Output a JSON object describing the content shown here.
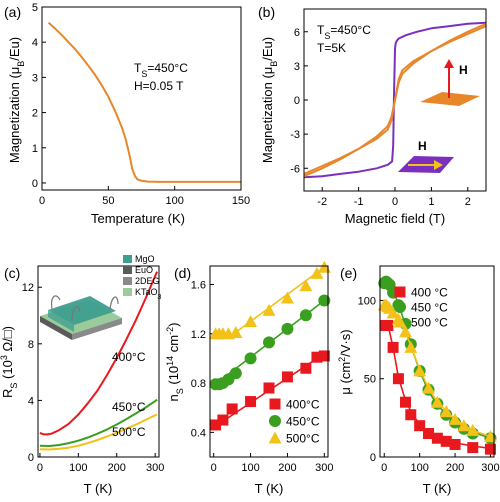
{
  "colors": {
    "orange": "#E8872A",
    "purple": "#7B2FBF",
    "red": "#E8191E",
    "green": "#3A9E1F",
    "yellow": "#F2C21A",
    "mgo": "#3E9E8F",
    "euo": "#5A5A5A",
    "twodeg": "#8A8A8A",
    "ktao3": "#9ACB9A"
  },
  "chart_data": [
    {
      "type": "line",
      "panel_label": "(a)",
      "xlabel": "Temperature (K)",
      "ylabel": "Magnetization (μ",
      "ylabel_sub": "B",
      "ylabel_end": "/Eu)",
      "xlim": [
        0,
        150
      ],
      "ylim": [
        -0.2,
        5
      ],
      "xticks": [
        0,
        50,
        100,
        150
      ],
      "yticks": [
        0,
        1,
        2,
        3,
        4,
        5
      ],
      "annotations": [
        {
          "text": "T",
          "sub": "S",
          "rest": "=450°C"
        },
        {
          "text": "H=0.05 T"
        }
      ],
      "series": [
        {
          "color": "orange",
          "x": [
            5,
            10,
            15,
            20,
            25,
            30,
            35,
            40,
            45,
            50,
            55,
            60,
            63,
            65,
            67,
            68,
            70,
            72,
            75,
            80,
            90,
            100,
            120,
            150
          ],
          "y": [
            4.55,
            4.38,
            4.2,
            4.0,
            3.8,
            3.57,
            3.33,
            3.07,
            2.78,
            2.45,
            2.05,
            1.6,
            1.25,
            0.95,
            0.6,
            0.4,
            0.2,
            0.1,
            0.06,
            0.04,
            0.03,
            0.03,
            0.03,
            0.03
          ]
        }
      ]
    },
    {
      "type": "line",
      "panel_label": "(b)",
      "xlabel": "Magnetic field (T)",
      "ylabel": "Magnetization (μ",
      "ylabel_sub": "B",
      "ylabel_end": "/Eu)",
      "xlim": [
        -2.5,
        2.5
      ],
      "ylim": [
        -8,
        8
      ],
      "xticks": [
        -2,
        -1,
        0,
        1,
        2
      ],
      "yticks": [
        -6,
        -3,
        0,
        3,
        6
      ],
      "annotations": [
        {
          "text": "T",
          "sub": "S",
          "rest": "=450°C"
        },
        {
          "text": "T=5K"
        },
        {
          "text": "H"
        },
        {
          "text": "H"
        }
      ],
      "series": [
        {
          "color": "purple",
          "x": [
            -2.5,
            -2.0,
            -1.5,
            -1.0,
            -0.5,
            -0.2,
            -0.08,
            -0.05,
            -0.03,
            0.0,
            0.02,
            0.05,
            0.1,
            0.3,
            0.6,
            1.0,
            1.5,
            2.0,
            2.5
          ],
          "y": [
            -6.8,
            -6.7,
            -6.5,
            -6.3,
            -6.0,
            -5.7,
            -5.4,
            -4.0,
            0.0,
            4.5,
            5.0,
            5.2,
            5.4,
            5.7,
            6.0,
            6.3,
            6.5,
            6.7,
            6.8
          ]
        },
        {
          "color": "orange",
          "x": [
            -2.5,
            -2.0,
            -1.5,
            -1.0,
            -0.5,
            -0.2,
            -0.1,
            0.0,
            0.1,
            0.2,
            0.5,
            1.0,
            1.5,
            2.0,
            2.5
          ],
          "y": [
            -6.7,
            -6.0,
            -5.2,
            -4.3,
            -3.2,
            -2.3,
            -1.5,
            0.0,
            1.8,
            2.6,
            3.4,
            4.3,
            5.1,
            5.8,
            6.5
          ]
        },
        {
          "color": "orange",
          "x": [
            -2.5,
            -2.0,
            -1.5,
            -1.0,
            -0.5,
            -0.2,
            -0.1,
            0.0,
            0.1,
            0.2,
            0.5,
            1.0,
            1.5,
            2.0,
            2.5
          ],
          "y": [
            -6.5,
            -5.8,
            -5.1,
            -4.3,
            -3.4,
            -2.6,
            -1.8,
            0.0,
            1.5,
            2.3,
            3.2,
            4.3,
            5.2,
            6.0,
            6.7
          ]
        }
      ]
    },
    {
      "type": "line",
      "panel_label": "(c)",
      "xlabel": "T (K)",
      "ylabel": "R",
      "ylabel_sub": "S",
      "ylabel_end": " (10",
      "ylabel_sup": "3",
      "ylabel_tail": " Ω/□)",
      "xlim": [
        -5,
        310
      ],
      "ylim": [
        0,
        13.5
      ],
      "xticks": [
        0,
        100,
        200,
        300
      ],
      "yticks": [
        0,
        4,
        8,
        12
      ],
      "legend_layers": [
        "MgO",
        "EuO",
        "2DEG",
        "KTaO",
        "3"
      ],
      "series": [
        {
          "name": "400°C",
          "color": "red",
          "x": [
            0,
            10,
            20,
            30,
            50,
            75,
            100,
            125,
            150,
            175,
            200,
            225,
            250,
            275,
            300,
            305
          ],
          "y": [
            1.7,
            1.6,
            1.6,
            1.65,
            1.9,
            2.35,
            3.0,
            3.8,
            4.7,
            5.8,
            7.0,
            8.3,
            9.7,
            11.2,
            12.8,
            13.1
          ]
        },
        {
          "name": "450°C",
          "color": "green",
          "x": [
            0,
            25,
            50,
            75,
            100,
            125,
            150,
            175,
            200,
            225,
            250,
            275,
            300,
            305
          ],
          "y": [
            0.8,
            0.78,
            0.85,
            0.98,
            1.15,
            1.38,
            1.65,
            1.95,
            2.3,
            2.68,
            3.08,
            3.5,
            3.95,
            4.05
          ]
        },
        {
          "name": "500°C",
          "color": "yellow",
          "x": [
            0,
            25,
            50,
            75,
            100,
            125,
            150,
            175,
            200,
            225,
            250,
            275,
            300,
            305
          ],
          "y": [
            0.55,
            0.53,
            0.58,
            0.66,
            0.8,
            0.98,
            1.2,
            1.45,
            1.72,
            2.0,
            2.3,
            2.62,
            2.95,
            3.0
          ]
        }
      ]
    },
    {
      "type": "scatter",
      "panel_label": "(d)",
      "xlabel": "T (K)",
      "ylabel": "n",
      "ylabel_sub": "S",
      "ylabel_end": " (10",
      "ylabel_sup": "14",
      "ylabel_tail": " cm",
      "ylabel_sup2": "-2",
      "ylabel_close": ")",
      "xlim": [
        -10,
        310
      ],
      "ylim": [
        0.2,
        1.75
      ],
      "xticks": [
        0,
        100,
        200,
        300
      ],
      "yticks": [
        0.4,
        0.8,
        1.2,
        1.6
      ],
      "series": [
        {
          "name": "400°C",
          "color": "red",
          "marker": "square",
          "x": [
            5,
            25,
            50,
            100,
            150,
            200,
            250,
            280,
            300
          ],
          "y": [
            0.46,
            0.5,
            0.59,
            0.65,
            0.76,
            0.85,
            0.92,
            1.01,
            1.02
          ],
          "fit": [
            [
              0,
              0.44
            ],
            [
              300,
              1.04
            ]
          ]
        },
        {
          "name": "450°C",
          "color": "green",
          "marker": "circle",
          "x": [
            5,
            15,
            25,
            40,
            60,
            100,
            150,
            200,
            250,
            300
          ],
          "y": [
            0.79,
            0.79,
            0.8,
            0.83,
            0.88,
            1.0,
            1.13,
            1.24,
            1.35,
            1.47
          ],
          "fit": [
            [
              0,
              0.78
            ],
            [
              300,
              1.47
            ]
          ]
        },
        {
          "name": "500°C",
          "color": "yellow",
          "marker": "triangle",
          "x": [
            5,
            15,
            25,
            40,
            60,
            100,
            150,
            200,
            250,
            280,
            300
          ],
          "y": [
            1.2,
            1.2,
            1.2,
            1.2,
            1.21,
            1.3,
            1.39,
            1.49,
            1.59,
            1.69,
            1.74
          ],
          "fit": [
            [
              50,
              1.19
            ],
            [
              300,
              1.74
            ]
          ]
        }
      ]
    },
    {
      "type": "scatter",
      "panel_label": "(e)",
      "xlabel": "T (K)",
      "ylabel": "μ (cm",
      "ylabel_sup": "2",
      "ylabel_end": "/V·s)",
      "xlim": [
        -12,
        310
      ],
      "ylim": [
        0,
        122
      ],
      "xticks": [
        0,
        100,
        200,
        300
      ],
      "yticks": [
        0,
        50,
        100
      ],
      "series": [
        {
          "name": "400 °C",
          "color": "red",
          "marker": "square",
          "x": [
            5,
            10,
            25,
            40,
            60,
            75,
            100,
            125,
            150,
            175,
            200,
            250,
            300
          ],
          "y": [
            84,
            84,
            70,
            50,
            35,
            27,
            20,
            15,
            12,
            10,
            8,
            6,
            5
          ],
          "fit": [
            [
              0,
              85
            ],
            [
              10,
              85
            ],
            [
              25,
              70
            ],
            [
              40,
              51
            ],
            [
              60,
              36
            ],
            [
              80,
              27
            ],
            [
              100,
              21
            ],
            [
              125,
              16
            ],
            [
              150,
              13
            ],
            [
              200,
              9
            ],
            [
              250,
              7
            ],
            [
              300,
              5.5
            ]
          ]
        },
        {
          "name": "450 °C",
          "color": "green",
          "marker": "circle",
          "x": [
            0,
            5,
            10,
            15,
            25,
            40,
            60,
            75,
            100,
            125,
            150,
            175,
            200,
            225,
            250,
            300
          ],
          "y": [
            111,
            112,
            111,
            110,
            105,
            97,
            85,
            72,
            55,
            43,
            34,
            27,
            22,
            18,
            15,
            12
          ],
          "fit": [
            [
              0,
              112
            ],
            [
              10,
              112
            ],
            [
              25,
              106
            ],
            [
              40,
              98
            ],
            [
              60,
              84
            ],
            [
              80,
              68
            ],
            [
              100,
              55
            ],
            [
              125,
              42
            ],
            [
              150,
              33
            ],
            [
              200,
              22
            ],
            [
              250,
              16
            ],
            [
              300,
              12
            ]
          ]
        },
        {
          "name": "500 °C",
          "color": "yellow",
          "marker": "triangle",
          "x": [
            0,
            5,
            10,
            15,
            25,
            40,
            60,
            75,
            100,
            125,
            150,
            175,
            200,
            225,
            250,
            300
          ],
          "y": [
            97,
            97,
            96,
            95,
            92,
            88,
            80,
            70,
            55,
            44,
            35,
            29,
            24,
            20,
            17,
            13
          ],
          "fit": [
            [
              0,
              98
            ],
            [
              10,
              97
            ],
            [
              25,
              93
            ],
            [
              40,
              88
            ],
            [
              60,
              80
            ],
            [
              80,
              68
            ],
            [
              100,
              56
            ],
            [
              125,
              44
            ],
            [
              150,
              35
            ],
            [
              200,
              24
            ],
            [
              250,
              17
            ],
            [
              300,
              13
            ]
          ]
        }
      ]
    }
  ]
}
